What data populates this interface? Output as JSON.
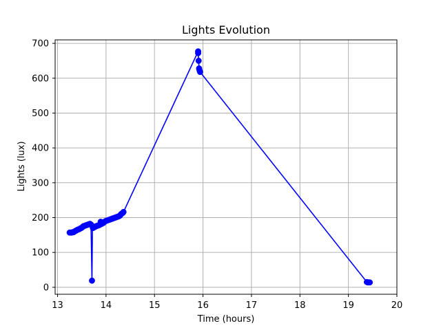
{
  "chart_data": {
    "type": "line",
    "title": "Lights Evolution",
    "xlabel": "Time (hours)",
    "ylabel": "Lights (lux)",
    "xlim": [
      12.95,
      20.0
    ],
    "ylim": [
      -20,
      710
    ],
    "xticks": [
      13,
      14,
      15,
      16,
      17,
      18,
      19,
      20
    ],
    "yticks": [
      0,
      100,
      200,
      300,
      400,
      500,
      600,
      700
    ],
    "grid": true,
    "colors": {
      "series": "#0000ff",
      "grid": "#b0b0b0",
      "axes": "#000000"
    },
    "series": [
      {
        "marker": "circle",
        "x": [
          13.25,
          13.27,
          13.29,
          13.31,
          13.33,
          13.35,
          13.37,
          13.39,
          13.41,
          13.43,
          13.45,
          13.47,
          13.49,
          13.51,
          13.53,
          13.55,
          13.57,
          13.59,
          13.61,
          13.63,
          13.65,
          13.67,
          13.69,
          13.71,
          13.72,
          13.73,
          13.75,
          13.77,
          13.79,
          13.81,
          13.83,
          13.85,
          13.87,
          13.89,
          13.91,
          13.93,
          13.95,
          13.97,
          13.99,
          14.01,
          14.03,
          14.05,
          14.07,
          14.09,
          14.11,
          14.13,
          14.15,
          14.17,
          14.19,
          14.21,
          14.23,
          14.25,
          14.27,
          14.29,
          14.31,
          14.33,
          14.35,
          14.36,
          15.9,
          15.9,
          15.91,
          15.92,
          15.93,
          15.94,
          19.38,
          19.4,
          19.42,
          19.44
        ],
        "y": [
          157,
          157,
          157,
          158,
          158,
          160,
          162,
          163,
          165,
          166,
          167,
          169,
          170,
          172,
          175,
          176,
          177,
          178,
          179,
          180,
          181,
          182,
          180,
          19,
          175,
          170,
          172,
          173,
          175,
          176,
          177,
          178,
          179,
          188,
          182,
          184,
          185,
          188,
          190,
          191,
          192,
          193,
          194,
          195,
          196,
          197,
          198,
          199,
          200,
          201,
          202,
          203,
          204,
          206,
          210,
          212,
          214,
          216,
          677,
          672,
          650,
          628,
          622,
          618,
          15,
          14,
          14,
          14
        ]
      }
    ]
  }
}
